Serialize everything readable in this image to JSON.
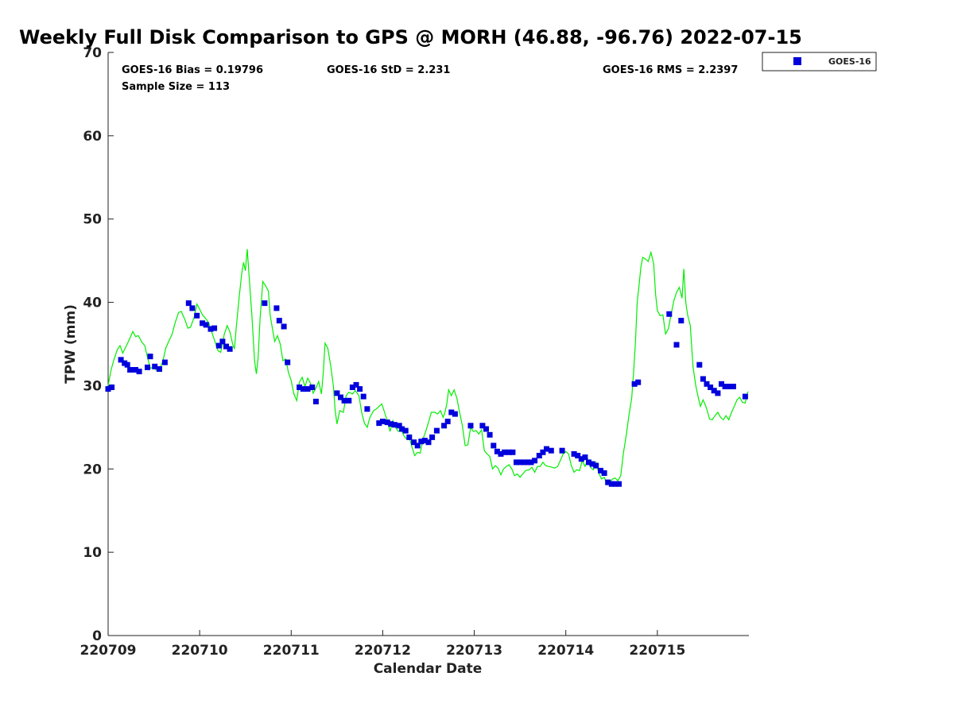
{
  "chart_data": {
    "type": "scatter",
    "title": "Weekly Full Disk Comparison to GPS @ MORH (46.88, -96.76) 2022-07-15",
    "xlabel": "Calendar Date",
    "ylabel": "TPW (mm)",
    "xlim": [
      0,
      7
    ],
    "ylim": [
      0,
      70
    ],
    "yticks": [
      0,
      10,
      20,
      30,
      40,
      50,
      60,
      70
    ],
    "xticks": [
      {
        "value": 0,
        "label": "220709"
      },
      {
        "value": 1,
        "label": "220710"
      },
      {
        "value": 2,
        "label": "220711"
      },
      {
        "value": 3,
        "label": "220712"
      },
      {
        "value": 4,
        "label": "220713"
      },
      {
        "value": 5,
        "label": "220714"
      },
      {
        "value": 6,
        "label": "220715"
      }
    ],
    "grid": false,
    "legend": {
      "position": "top-right",
      "entries": [
        "GOES-16"
      ]
    },
    "stats": {
      "bias": "GOES-16 Bias = 0.19796",
      "std": "GOES-16 StD = 2.231",
      "rms": "GOES-16 RMS = 2.2397",
      "sample": "Sample Size = 113"
    },
    "colors": {
      "series": "#0000dd",
      "reference": "#00ee00"
    },
    "series": [
      {
        "name": "GOES-16",
        "marker": "square",
        "points": [
          [
            0.0,
            29.6
          ],
          [
            0.04,
            29.8
          ],
          [
            0.14,
            33.1
          ],
          [
            0.18,
            32.7
          ],
          [
            0.21,
            32.5
          ],
          [
            0.24,
            31.9
          ],
          [
            0.3,
            31.9
          ],
          [
            0.34,
            31.7
          ],
          [
            0.43,
            32.2
          ],
          [
            0.46,
            33.5
          ],
          [
            0.51,
            32.3
          ],
          [
            0.56,
            32.0
          ],
          [
            0.62,
            32.8
          ],
          [
            0.88,
            39.9
          ],
          [
            0.92,
            39.3
          ],
          [
            0.97,
            38.4
          ],
          [
            1.03,
            37.5
          ],
          [
            1.07,
            37.3
          ],
          [
            1.12,
            36.8
          ],
          [
            1.16,
            36.9
          ],
          [
            1.21,
            34.8
          ],
          [
            1.25,
            35.3
          ],
          [
            1.29,
            34.7
          ],
          [
            1.33,
            34.4
          ],
          [
            1.71,
            39.9
          ],
          [
            1.84,
            39.3
          ],
          [
            1.87,
            37.8
          ],
          [
            1.92,
            37.1
          ],
          [
            1.96,
            32.8
          ],
          [
            2.09,
            29.8
          ],
          [
            2.13,
            29.6
          ],
          [
            2.18,
            29.6
          ],
          [
            2.23,
            29.8
          ],
          [
            2.27,
            28.1
          ],
          [
            2.5,
            29.1
          ],
          [
            2.54,
            28.6
          ],
          [
            2.58,
            28.2
          ],
          [
            2.63,
            28.2
          ],
          [
            2.67,
            29.8
          ],
          [
            2.71,
            30.1
          ],
          [
            2.75,
            29.6
          ],
          [
            2.79,
            28.7
          ],
          [
            2.83,
            27.2
          ],
          [
            2.96,
            25.5
          ],
          [
            3.0,
            25.7
          ],
          [
            3.05,
            25.6
          ],
          [
            3.09,
            25.4
          ],
          [
            3.13,
            25.3
          ],
          [
            3.18,
            25.2
          ],
          [
            3.21,
            24.8
          ],
          [
            3.25,
            24.6
          ],
          [
            3.29,
            23.8
          ],
          [
            3.34,
            23.2
          ],
          [
            3.38,
            22.8
          ],
          [
            3.42,
            23.3
          ],
          [
            3.46,
            23.4
          ],
          [
            3.5,
            23.2
          ],
          [
            3.54,
            23.8
          ],
          [
            3.59,
            24.6
          ],
          [
            3.67,
            25.2
          ],
          [
            3.71,
            25.7
          ],
          [
            3.75,
            26.8
          ],
          [
            3.79,
            26.6
          ],
          [
            3.96,
            25.2
          ],
          [
            4.09,
            25.2
          ],
          [
            4.13,
            24.8
          ],
          [
            4.17,
            24.1
          ],
          [
            4.21,
            22.8
          ],
          [
            4.25,
            22.1
          ],
          [
            4.29,
            21.8
          ],
          [
            4.33,
            22.0
          ],
          [
            4.38,
            22.0
          ],
          [
            4.42,
            22.0
          ],
          [
            4.46,
            20.8
          ],
          [
            4.5,
            20.8
          ],
          [
            4.54,
            20.8
          ],
          [
            4.58,
            20.8
          ],
          [
            4.62,
            20.8
          ],
          [
            4.66,
            21.0
          ],
          [
            4.71,
            21.6
          ],
          [
            4.75,
            22.0
          ],
          [
            4.79,
            22.4
          ],
          [
            4.84,
            22.2
          ],
          [
            4.96,
            22.2
          ],
          [
            5.09,
            21.8
          ],
          [
            5.13,
            21.6
          ],
          [
            5.17,
            21.2
          ],
          [
            5.21,
            21.4
          ],
          [
            5.25,
            20.8
          ],
          [
            5.29,
            20.6
          ],
          [
            5.33,
            20.4
          ],
          [
            5.38,
            19.8
          ],
          [
            5.42,
            19.5
          ],
          [
            5.46,
            18.4
          ],
          [
            5.5,
            18.2
          ],
          [
            5.54,
            18.2
          ],
          [
            5.58,
            18.2
          ],
          [
            5.75,
            30.2
          ],
          [
            5.79,
            30.4
          ],
          [
            6.13,
            38.6
          ],
          [
            6.21,
            34.9
          ],
          [
            6.26,
            37.8
          ],
          [
            6.46,
            32.5
          ],
          [
            6.5,
            30.8
          ],
          [
            6.54,
            30.2
          ],
          [
            6.58,
            29.8
          ],
          [
            6.62,
            29.4
          ],
          [
            6.66,
            29.1
          ],
          [
            6.7,
            30.2
          ],
          [
            6.74,
            29.9
          ],
          [
            6.79,
            29.9
          ],
          [
            6.83,
            29.9
          ],
          [
            6.96,
            28.7
          ]
        ]
      }
    ],
    "reference_line": [
      [
        0.0,
        30.0
      ],
      [
        0.03,
        31.8
      ],
      [
        0.06,
        33.0
      ],
      [
        0.1,
        34.3
      ],
      [
        0.13,
        34.8
      ],
      [
        0.16,
        33.9
      ],
      [
        0.2,
        34.8
      ],
      [
        0.23,
        35.5
      ],
      [
        0.27,
        36.5
      ],
      [
        0.3,
        35.9
      ],
      [
        0.33,
        36.0
      ],
      [
        0.37,
        35.2
      ],
      [
        0.4,
        34.8
      ],
      [
        0.43,
        33.4
      ],
      [
        0.46,
        32.1
      ],
      [
        0.5,
        32.2
      ],
      [
        0.53,
        31.8
      ],
      [
        0.56,
        31.9
      ],
      [
        0.6,
        33.0
      ],
      [
        0.63,
        34.5
      ],
      [
        0.67,
        35.5
      ],
      [
        0.7,
        36.2
      ],
      [
        0.73,
        37.5
      ],
      [
        0.77,
        38.8
      ],
      [
        0.8,
        38.9
      ],
      [
        0.84,
        37.9
      ],
      [
        0.87,
        36.9
      ],
      [
        0.9,
        37.0
      ],
      [
        0.94,
        38.2
      ],
      [
        0.97,
        39.8
      ],
      [
        1.0,
        39.2
      ],
      [
        1.03,
        38.5
      ],
      [
        1.07,
        38.0
      ],
      [
        1.1,
        37.5
      ],
      [
        1.13,
        36.5
      ],
      [
        1.17,
        35.2
      ],
      [
        1.2,
        34.2
      ],
      [
        1.23,
        34.0
      ],
      [
        1.27,
        36.2
      ],
      [
        1.3,
        37.2
      ],
      [
        1.33,
        36.5
      ],
      [
        1.36,
        35.0
      ],
      [
        1.38,
        34.4
      ],
      [
        1.4,
        37.0
      ],
      [
        1.43,
        40.5
      ],
      [
        1.46,
        43.5
      ],
      [
        1.48,
        44.8
      ],
      [
        1.5,
        43.8
      ],
      [
        1.52,
        46.4
      ],
      [
        1.54,
        43.2
      ],
      [
        1.57,
        38.5
      ],
      [
        1.6,
        33.0
      ],
      [
        1.62,
        31.4
      ],
      [
        1.64,
        33.5
      ],
      [
        1.66,
        38.0
      ],
      [
        1.69,
        42.5
      ],
      [
        1.72,
        42.0
      ],
      [
        1.75,
        41.4
      ],
      [
        1.77,
        38.5
      ],
      [
        1.8,
        36.5
      ],
      [
        1.82,
        35.3
      ],
      [
        1.85,
        36.0
      ],
      [
        1.88,
        35.0
      ],
      [
        1.91,
        33.0
      ],
      [
        1.94,
        33.2
      ],
      [
        1.97,
        31.6
      ],
      [
        2.0,
        30.6
      ],
      [
        2.03,
        29.0
      ],
      [
        2.06,
        28.2
      ],
      [
        2.09,
        30.4
      ],
      [
        2.12,
        31.0
      ],
      [
        2.15,
        29.9
      ],
      [
        2.18,
        30.9
      ],
      [
        2.21,
        30.3
      ],
      [
        2.24,
        29.1
      ],
      [
        2.27,
        29.7
      ],
      [
        2.3,
        30.5
      ],
      [
        2.33,
        29.0
      ],
      [
        2.35,
        31.5
      ],
      [
        2.37,
        35.1
      ],
      [
        2.4,
        34.5
      ],
      [
        2.43,
        32.5
      ],
      [
        2.46,
        30.0
      ],
      [
        2.48,
        27.0
      ],
      [
        2.5,
        25.4
      ],
      [
        2.53,
        27.0
      ],
      [
        2.57,
        26.8
      ],
      [
        2.6,
        28.8
      ],
      [
        2.63,
        29.2
      ],
      [
        2.67,
        29.0
      ],
      [
        2.7,
        29.4
      ],
      [
        2.74,
        28.8
      ],
      [
        2.77,
        26.8
      ],
      [
        2.8,
        25.5
      ],
      [
        2.83,
        25.0
      ],
      [
        2.86,
        26.2
      ],
      [
        2.9,
        27.0
      ],
      [
        2.93,
        27.2
      ],
      [
        2.96,
        27.5
      ],
      [
        2.99,
        27.8
      ],
      [
        3.02,
        26.8
      ],
      [
        3.05,
        25.8
      ],
      [
        3.08,
        24.5
      ],
      [
        3.11,
        25.8
      ],
      [
        3.14,
        25.0
      ],
      [
        3.17,
        24.5
      ],
      [
        3.2,
        24.8
      ],
      [
        3.23,
        24.0
      ],
      [
        3.26,
        23.6
      ],
      [
        3.29,
        23.8
      ],
      [
        3.32,
        22.6
      ],
      [
        3.35,
        21.6
      ],
      [
        3.38,
        22.0
      ],
      [
        3.41,
        21.9
      ],
      [
        3.44,
        23.6
      ],
      [
        3.47,
        24.5
      ],
      [
        3.5,
        25.6
      ],
      [
        3.53,
        26.8
      ],
      [
        3.57,
        26.8
      ],
      [
        3.6,
        26.6
      ],
      [
        3.63,
        27.0
      ],
      [
        3.66,
        26.2
      ],
      [
        3.68,
        26.8
      ],
      [
        3.7,
        27.8
      ],
      [
        3.72,
        29.5
      ],
      [
        3.75,
        28.8
      ],
      [
        3.78,
        29.5
      ],
      [
        3.81,
        28.5
      ],
      [
        3.84,
        26.8
      ],
      [
        3.87,
        25.2
      ],
      [
        3.9,
        22.8
      ],
      [
        3.93,
        22.9
      ],
      [
        3.96,
        25.0
      ],
      [
        3.99,
        24.5
      ],
      [
        4.02,
        24.6
      ],
      [
        4.05,
        24.2
      ],
      [
        4.08,
        24.7
      ],
      [
        4.11,
        22.2
      ],
      [
        4.14,
        21.8
      ],
      [
        4.17,
        21.5
      ],
      [
        4.2,
        20.0
      ],
      [
        4.23,
        20.4
      ],
      [
        4.26,
        20.1
      ],
      [
        4.29,
        19.3
      ],
      [
        4.32,
        20.0
      ],
      [
        4.35,
        20.3
      ],
      [
        4.38,
        20.5
      ],
      [
        4.41,
        20.0
      ],
      [
        4.44,
        19.2
      ],
      [
        4.47,
        19.4
      ],
      [
        4.5,
        19.0
      ],
      [
        4.53,
        19.4
      ],
      [
        4.56,
        19.8
      ],
      [
        4.6,
        19.9
      ],
      [
        4.63,
        20.2
      ],
      [
        4.66,
        19.6
      ],
      [
        4.69,
        20.3
      ],
      [
        4.72,
        20.3
      ],
      [
        4.75,
        20.8
      ],
      [
        4.78,
        20.4
      ],
      [
        4.81,
        20.3
      ],
      [
        4.85,
        20.2
      ],
      [
        4.88,
        20.1
      ],
      [
        4.91,
        20.3
      ],
      [
        4.94,
        21.0
      ],
      [
        4.97,
        21.8
      ],
      [
        5.0,
        22.1
      ],
      [
        5.03,
        21.8
      ],
      [
        5.06,
        20.4
      ],
      [
        5.09,
        19.6
      ],
      [
        5.12,
        19.9
      ],
      [
        5.15,
        19.8
      ],
      [
        5.18,
        21.0
      ],
      [
        5.21,
        20.3
      ],
      [
        5.24,
        21.2
      ],
      [
        5.27,
        20.2
      ],
      [
        5.3,
        19.9
      ],
      [
        5.33,
        20.8
      ],
      [
        5.36,
        19.5
      ],
      [
        5.39,
        18.8
      ],
      [
        5.42,
        19.0
      ],
      [
        5.45,
        18.1
      ],
      [
        5.48,
        18.3
      ],
      [
        5.51,
        18.8
      ],
      [
        5.54,
        18.9
      ],
      [
        5.57,
        18.6
      ],
      [
        5.6,
        19.2
      ],
      [
        5.63,
        22.0
      ],
      [
        5.66,
        24.0
      ],
      [
        5.69,
        26.5
      ],
      [
        5.72,
        28.5
      ],
      [
        5.74,
        31.5
      ],
      [
        5.76,
        35.0
      ],
      [
        5.78,
        40.0
      ],
      [
        5.8,
        42.0
      ],
      [
        5.82,
        44.2
      ],
      [
        5.84,
        45.4
      ],
      [
        5.87,
        45.2
      ],
      [
        5.9,
        44.9
      ],
      [
        5.93,
        46.0
      ],
      [
        5.96,
        44.6
      ],
      [
        5.98,
        41.0
      ],
      [
        6.0,
        39.0
      ],
      [
        6.03,
        38.4
      ],
      [
        6.06,
        38.5
      ],
      [
        6.09,
        36.2
      ],
      [
        6.12,
        36.8
      ],
      [
        6.15,
        38.5
      ],
      [
        6.18,
        40.2
      ],
      [
        6.21,
        41.2
      ],
      [
        6.24,
        41.8
      ],
      [
        6.27,
        40.5
      ],
      [
        6.29,
        44.0
      ],
      [
        6.31,
        40.0
      ],
      [
        6.33,
        38.5
      ],
      [
        6.36,
        37.2
      ],
      [
        6.39,
        32.2
      ],
      [
        6.42,
        30.0
      ],
      [
        6.45,
        28.4
      ],
      [
        6.47,
        27.5
      ],
      [
        6.5,
        28.3
      ],
      [
        6.53,
        27.5
      ],
      [
        6.55,
        26.8
      ],
      [
        6.57,
        26.0
      ],
      [
        6.6,
        25.9
      ],
      [
        6.63,
        26.4
      ],
      [
        6.66,
        26.8
      ],
      [
        6.69,
        26.2
      ],
      [
        6.72,
        25.9
      ],
      [
        6.75,
        26.4
      ],
      [
        6.78,
        25.9
      ],
      [
        6.81,
        26.8
      ],
      [
        6.84,
        27.5
      ],
      [
        6.87,
        28.3
      ],
      [
        6.9,
        28.6
      ],
      [
        6.93,
        28.0
      ],
      [
        6.96,
        27.9
      ],
      [
        6.99,
        29.3
      ]
    ]
  }
}
